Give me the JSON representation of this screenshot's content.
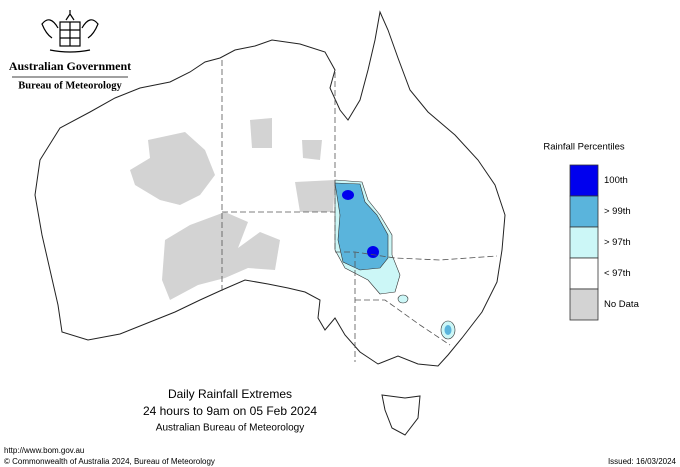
{
  "header": {
    "government": "Australian Government",
    "agency": "Bureau of Meteorology"
  },
  "legend": {
    "title": "Rainfall Percentiles",
    "items": [
      {
        "label": "100th",
        "color": "#0000ee"
      },
      {
        "label": "> 99th",
        "color": "#5ab4dc"
      },
      {
        "label": "> 97th",
        "color": "#ccf7f7"
      },
      {
        "label": "< 97th",
        "color": "#ffffff"
      },
      {
        "label": "No Data",
        "color": "#d3d3d3"
      }
    ]
  },
  "caption": {
    "title": "Daily Rainfall Extremes",
    "period": "24 hours to 9am on 05 Feb 2024",
    "source": "Australian Bureau of Meteorology"
  },
  "footer": {
    "url": "http://www.bom.gov.au",
    "copyright": "© Commonwealth of Australia 2024, Bureau of Meteorology",
    "issued": "Issued: 16/03/2024"
  }
}
